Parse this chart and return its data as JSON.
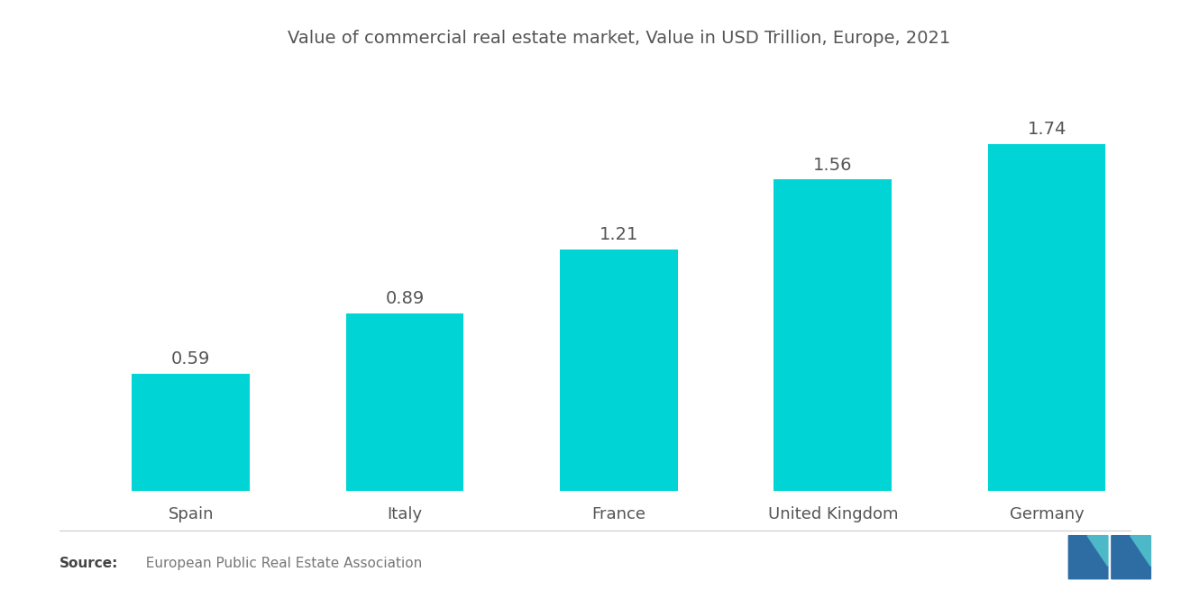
{
  "title": "Value of commercial real estate market, Value in USD Trillion, Europe, 2021",
  "categories": [
    "Spain",
    "Italy",
    "France",
    "United Kingdom",
    "Germany"
  ],
  "values": [
    0.59,
    0.89,
    1.21,
    1.56,
    1.74
  ],
  "bar_color": "#00D4D4",
  "label_color": "#555555",
  "title_color": "#555555",
  "background_color": "#ffffff",
  "source_bold": "Source:",
  "source_text": "  European Public Real Estate Association",
  "ylim": [
    0,
    2.1
  ],
  "bar_width": 0.55,
  "title_fontsize": 14,
  "label_fontsize": 14,
  "tick_fontsize": 13,
  "source_fontsize": 11
}
